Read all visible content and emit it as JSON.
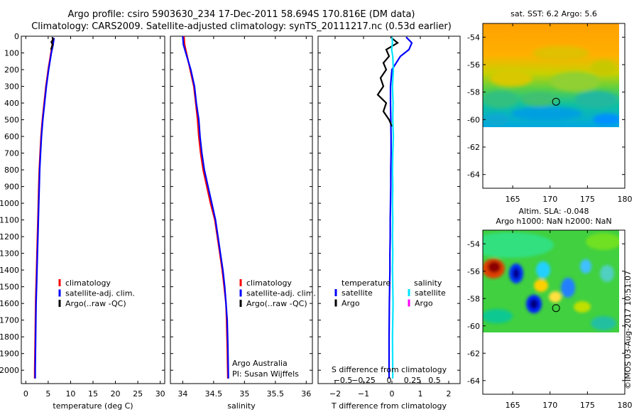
{
  "header": {
    "line1": "Argo profile: csiro 5903630_234 17-Dec-2011 58.694S 170.816E (DM data)",
    "line2": "Climatology: CARS2009. Satellite-adjusted climatology: synTS_20111217.nc (0.53d earlier)"
  },
  "colors": {
    "climatology": "#ff0000",
    "satellite": "#0000ff",
    "argo": "#000000",
    "argo_salinity": "#ff00ff",
    "satellite_salinity": "#00e5ff"
  },
  "chart_data": [
    {
      "type": "line",
      "id": "temperature",
      "xlabel": "temperature (deg C)",
      "ylabel": "",
      "xlim": [
        -1,
        31
      ],
      "ylim": [
        2080,
        0
      ],
      "xticks": [
        0,
        5,
        10,
        15,
        20,
        25,
        30
      ],
      "xtick_labels": [
        "0",
        "5",
        "10",
        "15",
        "20",
        "25",
        "30"
      ],
      "yticks": [
        0,
        100,
        200,
        300,
        400,
        500,
        600,
        700,
        800,
        900,
        1000,
        1100,
        1200,
        1300,
        1400,
        1500,
        1600,
        1700,
        1800,
        1900,
        2000
      ],
      "ytick_labels": [
        "0",
        "100",
        "200",
        "300",
        "400",
        "500",
        "600",
        "700",
        "800",
        "900",
        "1000",
        "1100",
        "1200",
        "1300",
        "1400",
        "1500",
        "1600",
        "1700",
        "1800",
        "1900",
        "2000"
      ],
      "legend": [
        "climatology",
        "satellite-adj. clim.",
        "Argo(..raw -QC)"
      ],
      "series": [
        {
          "name": "climatology",
          "color": "#ff0000",
          "x": [
            6.0,
            5.9,
            5.6,
            5.0,
            4.5,
            4.1,
            3.7,
            3.4,
            3.2,
            3.0,
            2.9,
            2.8,
            2.7,
            2.6,
            2.5,
            2.4,
            2.3,
            2.2,
            2.1,
            2.0,
            2.0
          ],
          "y": [
            10,
            50,
            100,
            200,
            300,
            400,
            500,
            600,
            700,
            800,
            900,
            1000,
            1100,
            1200,
            1300,
            1400,
            1500,
            1600,
            1800,
            2000,
            2050
          ]
        },
        {
          "name": "satellite-adj. clim.",
          "color": "#0000ff",
          "x": [
            6.3,
            6.1,
            5.7,
            5.1,
            4.6,
            4.2,
            3.8,
            3.5,
            3.3,
            3.1,
            3.0,
            2.9,
            2.8,
            2.7,
            2.6,
            2.5,
            2.4,
            2.3,
            2.2,
            2.1,
            2.1
          ],
          "y": [
            10,
            50,
            100,
            200,
            300,
            400,
            500,
            600,
            700,
            800,
            900,
            1000,
            1100,
            1200,
            1300,
            1400,
            1500,
            1600,
            1800,
            2000,
            2050
          ]
        },
        {
          "name": "Argo(..raw -QC)",
          "color": "#000000",
          "x": [
            5.9,
            6.1,
            5.7,
            6.0,
            5.8,
            5.6
          ],
          "y": [
            5,
            20,
            35,
            50,
            65,
            80
          ]
        }
      ]
    },
    {
      "type": "line",
      "id": "salinity",
      "xlabel": "salinity",
      "ylabel": "",
      "xlim": [
        33.8,
        36.1
      ],
      "ylim": [
        2080,
        0
      ],
      "xticks": [
        34,
        34.5,
        35,
        35.5,
        36
      ],
      "xtick_labels": [
        "34",
        "34.5",
        "35",
        "35.5",
        "36"
      ],
      "legend": [
        "climatology",
        "satellite-adj. clim.",
        "Argo(..raw -QC)"
      ],
      "annotation": [
        "Argo Australia",
        "PI: Susan Wijffels"
      ],
      "series": [
        {
          "name": "climatology",
          "color": "#ff0000",
          "x": [
            34.02,
            34.03,
            34.06,
            34.12,
            34.18,
            34.21,
            34.24,
            34.26,
            34.29,
            34.33,
            34.39,
            34.45,
            34.52,
            34.56,
            34.6,
            34.64,
            34.67,
            34.7,
            34.71,
            34.72,
            34.73
          ],
          "y": [
            0,
            50,
            100,
            200,
            300,
            400,
            500,
            600,
            700,
            800,
            900,
            1000,
            1100,
            1200,
            1300,
            1400,
            1500,
            1600,
            1700,
            1850,
            2050
          ]
        },
        {
          "name": "satellite-adj. clim.",
          "color": "#0000ff",
          "x": [
            34.0,
            34.01,
            34.05,
            34.13,
            34.19,
            34.22,
            34.26,
            34.28,
            34.31,
            34.35,
            34.41,
            34.47,
            34.53,
            34.57,
            34.61,
            34.65,
            34.68,
            34.7,
            34.72,
            34.73,
            34.74
          ],
          "y": [
            0,
            50,
            100,
            200,
            300,
            400,
            500,
            600,
            700,
            800,
            900,
            1000,
            1100,
            1200,
            1300,
            1400,
            1500,
            1600,
            1700,
            1850,
            2050
          ]
        }
      ]
    },
    {
      "type": "line",
      "id": "difference",
      "xlabel": "T difference from climatology",
      "xlabel2": "S difference from climatology",
      "xlim": [
        -2.6,
        2.4
      ],
      "ylim": [
        2080,
        0
      ],
      "xticks": [
        -2,
        -1,
        0,
        1,
        2
      ],
      "xtick_labels": [
        "−2",
        "−1",
        "0",
        "1",
        "2"
      ],
      "sticks": [
        -0.5,
        -0.25,
        0,
        0.25,
        0.5
      ],
      "stick_labels": [
        "−0.5",
        "−0.25",
        "0",
        "0.25",
        "0.5"
      ],
      "legend_headers": [
        "temperature",
        "salinity"
      ],
      "legend_temperature": [
        "satellite",
        "Argo"
      ],
      "legend_salinity": [
        "satellite",
        "Argo"
      ],
      "series": [
        {
          "name": "temperature satellite",
          "color": "#0000ff",
          "x": [
            0.5,
            0.7,
            0.6,
            0.3,
            0.0,
            -0.05,
            -0.05,
            -0.04,
            -0.03,
            -0.03,
            -0.04,
            -0.04,
            -0.05,
            -0.06,
            -0.06,
            -0.07,
            -0.07,
            -0.08,
            -0.09,
            -0.1,
            -0.1
          ],
          "y": [
            5,
            40,
            80,
            120,
            200,
            300,
            400,
            500,
            600,
            700,
            800,
            900,
            1000,
            1100,
            1200,
            1300,
            1400,
            1500,
            1600,
            1800,
            2050
          ]
        },
        {
          "name": "temperature Argo",
          "color": "#000000",
          "x": [
            -0.05,
            0.2,
            -0.2,
            -0.1,
            -0.3,
            -0.2,
            -0.4,
            -0.3,
            -0.5,
            -0.2,
            -0.3,
            -0.1,
            0.0
          ],
          "y": [
            5,
            40,
            80,
            120,
            160,
            200,
            250,
            300,
            350,
            400,
            450,
            500,
            540
          ]
        },
        {
          "name": "salinity satellite",
          "color": "#00e5ff",
          "x": [
            0.0,
            0.02,
            -0.01,
            0.03,
            0.05,
            0.02,
            0.04,
            0.03,
            0.05,
            0.03,
            0.02,
            0.03,
            0.02,
            0.03,
            0.02,
            0.03,
            0.02,
            0.03,
            0.04,
            0.02,
            0.03
          ],
          "y": [
            5,
            40,
            80,
            120,
            200,
            300,
            400,
            500,
            600,
            700,
            800,
            900,
            1000,
            1100,
            1200,
            1300,
            1400,
            1500,
            1600,
            1800,
            2050
          ]
        }
      ]
    },
    {
      "type": "heatmap",
      "id": "sst-map",
      "title": "sat. SST: 6.2 Argo: 5.6",
      "xlim": [
        161,
        180
      ],
      "ylim": [
        -65,
        -53
      ],
      "xticks": [
        165,
        170,
        175,
        180
      ],
      "xtick_labels": [
        "165",
        "170",
        "175",
        "180"
      ],
      "yticks": [
        -54,
        -56,
        -58,
        -60,
        -62,
        -64
      ],
      "ytick_labels": [
        "-54",
        "-56",
        "-58",
        "-60",
        "-62",
        "-64"
      ],
      "data_extent_lat": [
        -60,
        -53
      ],
      "marker": {
        "lon": 170.8,
        "lat": -58.7
      }
    },
    {
      "type": "heatmap",
      "id": "sla-map",
      "title_line1": "Altim. SLA: -0.048",
      "title_line2": "Argo h1000: NaN h2000: NaN",
      "xlim": [
        161,
        180
      ],
      "ylim": [
        -65,
        -53
      ],
      "xticks": [
        165,
        170,
        175,
        180
      ],
      "xtick_labels": [
        "165",
        "170",
        "175",
        "180"
      ],
      "yticks": [
        -54,
        -56,
        -58,
        -60,
        -62,
        -64
      ],
      "ytick_labels": [
        "-54",
        "-56",
        "-58",
        "-60",
        "-62",
        "-64"
      ],
      "data_extent_lat": [
        -60,
        -53
      ],
      "marker": {
        "lon": 170.8,
        "lat": -58.7
      }
    }
  ],
  "stamp": "©IMOS 03-Aug-2017 10:51:07"
}
